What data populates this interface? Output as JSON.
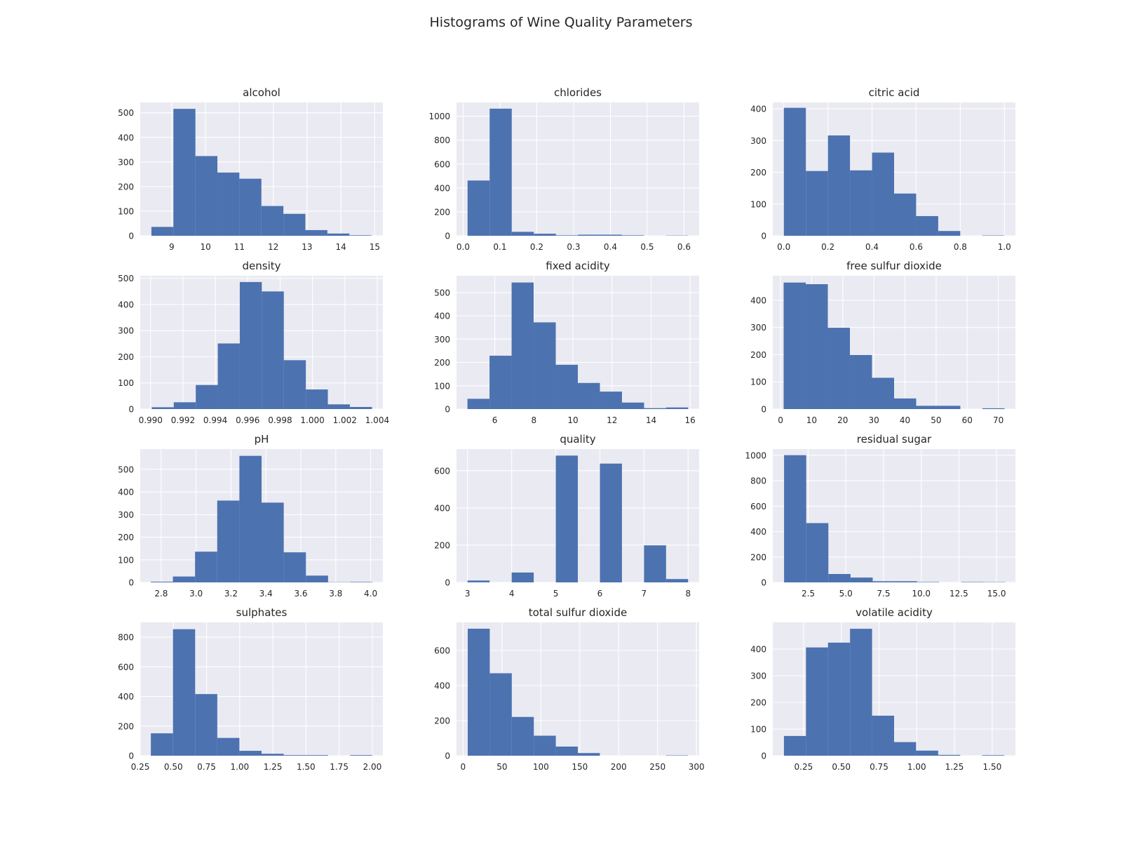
{
  "figure": {
    "title": "Histograms of Wine Quality Parameters",
    "colors": {
      "bar": "#4c72b0",
      "axes_bg": "#eaeaf2",
      "grid": "#ffffff",
      "text": "#262626"
    }
  },
  "chart_data": [
    {
      "type": "bar",
      "title": "alcohol",
      "grid": true,
      "xlim": [
        8.07,
        15.24
      ],
      "ylim": [
        0,
        542
      ],
      "xticks": [
        "9",
        "10",
        "11",
        "12",
        "13",
        "14",
        "15"
      ],
      "xtick_values": [
        9,
        10,
        11,
        12,
        13,
        14,
        15
      ],
      "yticks": [
        "0",
        "100",
        "200",
        "300",
        "400",
        "500"
      ],
      "ytick_values": [
        0,
        100,
        200,
        300,
        400,
        500
      ],
      "bin_edges": [
        8.4,
        9.05,
        9.7,
        10.35,
        11.0,
        11.65,
        12.3,
        12.95,
        13.6,
        14.25,
        14.9
      ],
      "values": [
        36,
        516,
        324,
        257,
        232,
        121,
        89,
        23,
        9,
        2
      ]
    },
    {
      "type": "bar",
      "title": "chlorides",
      "grid": true,
      "xlim": [
        -0.018,
        0.641
      ],
      "ylim": [
        0,
        1115
      ],
      "xticks": [
        "0.0",
        "0.1",
        "0.2",
        "0.3",
        "0.4",
        "0.5",
        "0.6"
      ],
      "xtick_values": [
        0,
        0.1,
        0.2,
        0.3,
        0.4,
        0.5,
        0.6
      ],
      "yticks": [
        "0",
        "200",
        "400",
        "600",
        "800",
        "1000"
      ],
      "ytick_values": [
        0,
        200,
        400,
        600,
        800,
        1000
      ],
      "bin_edges": [
        0.012,
        0.072,
        0.132,
        0.192,
        0.252,
        0.312,
        0.371,
        0.431,
        0.491,
        0.551,
        0.611
      ],
      "values": [
        462,
        1063,
        33,
        17,
        4,
        9,
        9,
        4,
        0,
        2
      ]
    },
    {
      "type": "bar",
      "title": "citric acid",
      "grid": true,
      "xlim": [
        -0.05,
        1.05
      ],
      "ylim": [
        0,
        420
      ],
      "xticks": [
        "0.0",
        "0.2",
        "0.4",
        "0.6",
        "0.8",
        "1.0"
      ],
      "xtick_values": [
        0,
        0.2,
        0.4,
        0.6,
        0.8,
        1.0
      ],
      "yticks": [
        "0",
        "100",
        "200",
        "300",
        "400"
      ],
      "ytick_values": [
        0,
        100,
        200,
        300,
        400
      ],
      "bin_edges": [
        0.0,
        0.1,
        0.2,
        0.3,
        0.4,
        0.5,
        0.6,
        0.7,
        0.8,
        0.9,
        1.0
      ],
      "values": [
        403,
        204,
        316,
        206,
        262,
        133,
        62,
        15,
        0,
        1
      ]
    },
    {
      "type": "bar",
      "title": "density",
      "grid": true,
      "xlim": [
        0.98936,
        1.00435
      ],
      "ylim": [
        0,
        510
      ],
      "xticks": [
        "0.990",
        "0.992",
        "0.994",
        "0.996",
        "0.998",
        "1.000",
        "1.002",
        "1.004"
      ],
      "xtick_values": [
        0.99,
        0.992,
        0.994,
        0.996,
        0.998,
        1.0,
        1.002,
        1.004
      ],
      "yticks": [
        "0",
        "100",
        "200",
        "300",
        "400",
        "500"
      ],
      "ytick_values": [
        0,
        100,
        200,
        300,
        400,
        500
      ],
      "bin_edges": [
        0.99007,
        0.99143,
        0.99279,
        0.99415,
        0.99551,
        0.99687,
        0.99823,
        0.99959,
        1.00095,
        1.00231,
        1.00368
      ],
      "values": [
        7,
        26,
        92,
        251,
        486,
        450,
        187,
        75,
        18,
        8
      ]
    },
    {
      "type": "bar",
      "title": "fixed acidity",
      "grid": true,
      "xlim": [
        4.04,
        16.46
      ],
      "ylim": [
        0,
        572
      ],
      "xticks": [
        "6",
        "8",
        "10",
        "12",
        "14",
        "16"
      ],
      "xtick_values": [
        6,
        8,
        10,
        12,
        14,
        16
      ],
      "yticks": [
        "0",
        "100",
        "200",
        "300",
        "400",
        "500"
      ],
      "ytick_values": [
        0,
        100,
        200,
        300,
        400,
        500
      ],
      "bin_edges": [
        4.6,
        5.73,
        6.86,
        7.99,
        9.12,
        10.25,
        11.38,
        12.51,
        13.64,
        14.77,
        15.9
      ],
      "values": [
        44,
        229,
        543,
        372,
        190,
        112,
        75,
        28,
        4,
        7
      ]
    },
    {
      "type": "bar",
      "title": "free sulfur dioxide",
      "grid": true,
      "xlim": [
        -2.5,
        75.5
      ],
      "ylim": [
        0,
        490
      ],
      "xticks": [
        "0",
        "10",
        "20",
        "30",
        "40",
        "50",
        "60",
        "70"
      ],
      "xtick_values": [
        0,
        10,
        20,
        30,
        40,
        50,
        60,
        70
      ],
      "yticks": [
        "0",
        "100",
        "200",
        "300",
        "400"
      ],
      "ytick_values": [
        0,
        100,
        200,
        300,
        400
      ],
      "bin_edges": [
        1,
        8.1,
        15.2,
        22.3,
        29.4,
        36.5,
        43.6,
        50.7,
        57.8,
        64.9,
        72
      ],
      "values": [
        465,
        459,
        299,
        199,
        115,
        39,
        12,
        12,
        0,
        3
      ]
    },
    {
      "type": "bar",
      "title": "pH",
      "grid": true,
      "xlim": [
        2.68,
        4.07
      ],
      "ylim": [
        0,
        590
      ],
      "xticks": [
        "2.8",
        "3.0",
        "3.2",
        "3.4",
        "3.6",
        "3.8",
        "4.0"
      ],
      "xtick_values": [
        2.8,
        3.0,
        3.2,
        3.4,
        3.6,
        3.8,
        4.0
      ],
      "yticks": [
        "0",
        "100",
        "200",
        "300",
        "400",
        "500"
      ],
      "ytick_values": [
        0,
        100,
        200,
        300,
        400,
        500
      ],
      "bin_edges": [
        2.74,
        2.867,
        2.994,
        3.121,
        3.248,
        3.375,
        3.502,
        3.629,
        3.756,
        3.883,
        4.01
      ],
      "values": [
        3,
        26,
        136,
        362,
        560,
        353,
        133,
        30,
        1,
        2
      ]
    },
    {
      "type": "bar",
      "title": "quality",
      "grid": true,
      "xlim": [
        2.75,
        8.25
      ],
      "ylim": [
        0,
        716
      ],
      "xticks": [
        "3",
        "4",
        "5",
        "6",
        "7",
        "8"
      ],
      "xtick_values": [
        3,
        4,
        5,
        6,
        7,
        8
      ],
      "yticks": [
        "0",
        "200",
        "400",
        "600"
      ],
      "ytick_values": [
        0,
        200,
        400,
        600
      ],
      "bin_edges": [
        3.0,
        3.5,
        4.0,
        4.5,
        5.0,
        5.5,
        6.0,
        6.5,
        7.0,
        7.5,
        8.0
      ],
      "values": [
        10,
        0,
        53,
        0,
        681,
        0,
        638,
        0,
        199,
        18
      ]
    },
    {
      "type": "bar",
      "title": "residual sugar",
      "grid": true,
      "xlim": [
        0.15,
        16.25
      ],
      "ylim": [
        0,
        1050
      ],
      "xticks": [
        "2.5",
        "5.0",
        "7.5",
        "10.0",
        "12.5",
        "15.0"
      ],
      "xtick_values": [
        2.5,
        5.0,
        7.5,
        10.0,
        12.5,
        15.0
      ],
      "yticks": [
        "0",
        "200",
        "400",
        "600",
        "800",
        "1000"
      ],
      "ytick_values": [
        0,
        200,
        400,
        600,
        800,
        1000
      ],
      "bin_edges": [
        0.9,
        2.37,
        3.84,
        5.31,
        6.78,
        8.25,
        9.72,
        11.19,
        12.66,
        14.13,
        15.6
      ],
      "values": [
        1002,
        467,
        66,
        38,
        9,
        9,
        3,
        0,
        3,
        2
      ]
    },
    {
      "type": "bar",
      "title": "sulphates",
      "grid": true,
      "xlim": [
        0.25,
        2.08
      ],
      "ylim": [
        0,
        900
      ],
      "xticks": [
        "0.25",
        "0.50",
        "0.75",
        "1.00",
        "1.25",
        "1.50",
        "1.75",
        "2.00"
      ],
      "xtick_values": [
        0.25,
        0.5,
        0.75,
        1.0,
        1.25,
        1.5,
        1.75,
        2.0
      ],
      "yticks": [
        "0",
        "200",
        "400",
        "600",
        "800"
      ],
      "ytick_values": [
        0,
        200,
        400,
        600,
        800
      ],
      "bin_edges": [
        0.33,
        0.497,
        0.664,
        0.831,
        0.998,
        1.165,
        1.332,
        1.499,
        1.666,
        1.833,
        2.0
      ],
      "values": [
        151,
        854,
        416,
        120,
        33,
        13,
        4,
        4,
        0,
        4
      ]
    },
    {
      "type": "bar",
      "title": "total sulfur dioxide",
      "grid": true,
      "xlim": [
        -8.45,
        303.45
      ],
      "ylim": [
        0,
        760
      ],
      "xticks": [
        "0",
        "50",
        "100",
        "150",
        "200",
        "250",
        "300"
      ],
      "xtick_values": [
        0,
        50,
        100,
        150,
        200,
        250,
        300
      ],
      "yticks": [
        "0",
        "200",
        "400",
        "600"
      ],
      "ytick_values": [
        0,
        200,
        400,
        600
      ],
      "bin_edges": [
        6,
        34.3,
        62.6,
        90.9,
        119.2,
        147.5,
        175.8,
        204.1,
        232.4,
        260.7,
        289
      ],
      "values": [
        724,
        470,
        221,
        114,
        52,
        15,
        0,
        0,
        0,
        2
      ]
    },
    {
      "type": "bar",
      "title": "volatile acidity",
      "grid": true,
      "xlim": [
        0.046,
        1.654
      ],
      "ylim": [
        0,
        500
      ],
      "xticks": [
        "0.25",
        "0.50",
        "0.75",
        "1.00",
        "1.25",
        "1.50"
      ],
      "xtick_values": [
        0.25,
        0.5,
        0.75,
        1.0,
        1.25,
        1.5
      ],
      "yticks": [
        "0",
        "100",
        "200",
        "300",
        "400"
      ],
      "ytick_values": [
        0,
        100,
        200,
        300,
        400
      ],
      "bin_edges": [
        0.12,
        0.266,
        0.412,
        0.558,
        0.704,
        0.85,
        0.996,
        1.142,
        1.288,
        1.434,
        1.58
      ],
      "values": [
        74,
        406,
        424,
        476,
        150,
        51,
        19,
        3,
        0,
        2
      ]
    }
  ]
}
